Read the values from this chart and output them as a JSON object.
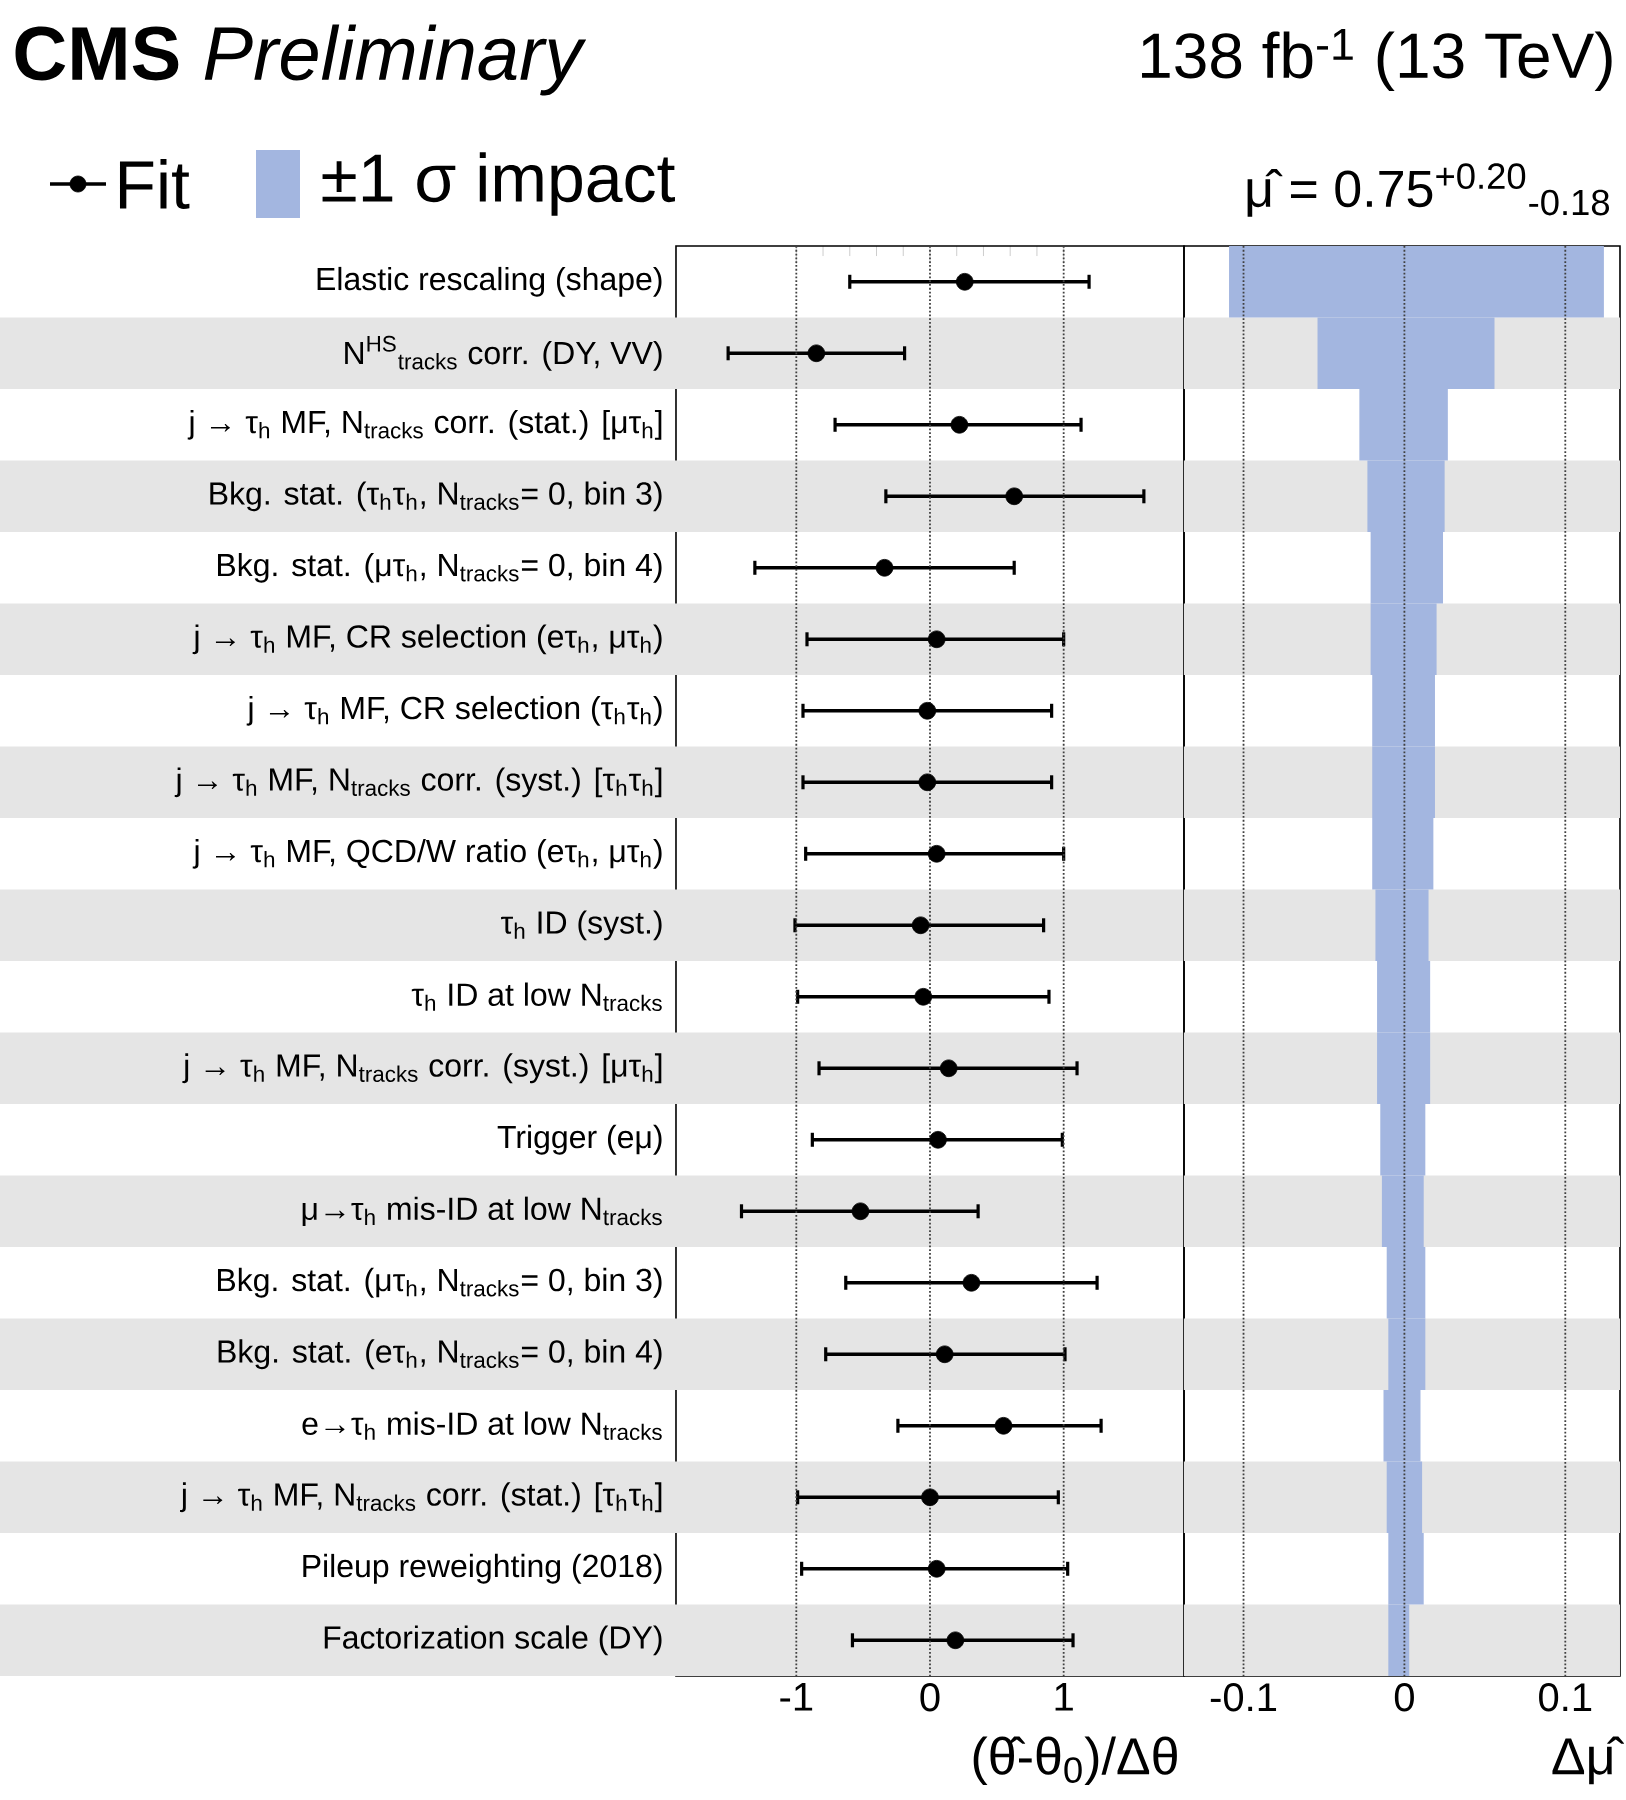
{
  "chart_data": [
    {
      "type": "scatter",
      "orientation": "horizontal",
      "title": "**CMS** *Preliminary*",
      "xlabel": "(θ̂-θ$_{0}$)/Δθ",
      "categories": [
        "Elastic rescaling (shape)",
        "N$^{HS}$$_{tracks}$ corr. (DY, VV)",
        "j → τ$_{h}$ MF, N$_{tracks}$ corr. (stat.) [μτ$_{h}$]",
        "Bkg. stat. (τ$_{h}$τ$_{h}$, N$_{tracks}$= 0, bin 3)",
        "Bkg. stat. (μτ$_{h}$, N$_{tracks}$= 0, bin 4)",
        "j → τ$_{h}$ MF, CR selection (eτ$_{h}$, μτ$_{h}$)",
        "j → τ$_{h}$ MF, CR selection (τ$_{h}$τ$_{h}$)",
        "j → τ$_{h}$ MF, N$_{tracks}$ corr. (syst.) [τ$_{h}$τ$_{h}$]",
        "j → τ$_{h}$ MF, QCD/W ratio (eτ$_{h}$, μτ$_{h}$)",
        "τ$_{h}$ ID (syst.)",
        "τ$_{h}$ ID at low N$_{tracks}$",
        "j → τ$_{h}$ MF, N$_{tracks}$ corr. (syst.) [μτ$_{h}$]",
        "Trigger (eμ)",
        "μ→τ$_{h}$ mis-ID at low N$_{tracks}$",
        "Bkg. stat. (μτ$_{h}$, N$_{tracks}$= 0, bin 3)",
        "Bkg. stat. (eτ$_{h}$, N$_{tracks}$= 0, bin 4)",
        "e→τ$_{h}$ mis-ID at low N$_{tracks}$",
        "j → τ$_{h}$ MF, N$_{tracks}$ corr. (stat.) [τ$_{h}$τ$_{h}$]",
        "Pileup reweighting (2018)",
        "Factorization scale (DY)"
      ],
      "series": [
        {
          "name": "Fit",
          "color": "#000000",
          "values": [
            0.26,
            -0.85,
            0.22,
            0.63,
            -0.34,
            0.05,
            -0.02,
            -0.02,
            0.05,
            -0.07,
            -0.05,
            0.14,
            0.06,
            -0.52,
            0.31,
            0.11,
            0.55,
            0.0,
            0.05,
            0.19
          ],
          "errors": [
            [
              -0.6,
              1.19
            ],
            [
              -1.51,
              -0.19
            ],
            [
              -0.71,
              1.13
            ],
            [
              -0.33,
              1.6
            ],
            [
              -1.31,
              0.63
            ],
            [
              -0.92,
              1.0
            ],
            [
              -0.95,
              0.91
            ],
            [
              -0.95,
              0.91
            ],
            [
              -0.93,
              1.0
            ],
            [
              -1.01,
              0.85
            ],
            [
              -0.99,
              0.89
            ],
            [
              -0.83,
              1.1
            ],
            [
              -0.88,
              0.99
            ],
            [
              -1.41,
              0.36
            ],
            [
              -0.63,
              1.25
            ],
            [
              -0.78,
              1.01
            ],
            [
              -0.24,
              1.28
            ],
            [
              -0.99,
              0.96
            ],
            [
              -0.96,
              1.03
            ],
            [
              -0.58,
              1.07
            ]
          ]
        }
      ],
      "xlim": [
        -1.9,
        1.9
      ],
      "xticks": [
        -1,
        0,
        1
      ],
      "grid": "x",
      "marker": "circle",
      "legend": "top",
      "bands": [
        {
          "axis": "y",
          "from": "N$^{HS}$$_{tracks}$ corr. (DY, VV)",
          "to": "N$^{HS}$$_{tracks}$ corr. (DY, VV)",
          "color": "#e5e5e5"
        },
        {
          "axis": "y",
          "from": "Bkg. stat. (τ$_{h}$τ$_{h}$, N$_{tracks}$= 0, bin 3)",
          "to": "Bkg. stat. (τ$_{h}$τ$_{h}$, N$_{tracks}$= 0, bin 3)",
          "color": "#e5e5e5"
        },
        {
          "axis": "y",
          "from": "j → τ$_{h}$ MF, CR selection (eτ$_{h}$, μτ$_{h}$)",
          "to": "j → τ$_{h}$ MF, CR selection (eτ$_{h}$, μτ$_{h}$)",
          "color": "#e5e5e5"
        },
        {
          "axis": "y",
          "from": "j → τ$_{h}$ MF, N$_{tracks}$ corr. (syst.) [τ$_{h}$τ$_{h}$]",
          "to": "j → τ$_{h}$ MF, N$_{tracks}$ corr. (syst.) [τ$_{h}$τ$_{h}$]",
          "color": "#e5e5e5"
        },
        {
          "axis": "y",
          "from": "τ$_{h}$ ID (syst.)",
          "to": "τ$_{h}$ ID (syst.)",
          "color": "#e5e5e5"
        },
        {
          "axis": "y",
          "from": "j → τ$_{h}$ MF, N$_{tracks}$ corr. (syst.) [μτ$_{h}$]",
          "to": "j → τ$_{h}$ MF, N$_{tracks}$ corr. (syst.) [μτ$_{h}$]",
          "color": "#e5e5e5"
        },
        {
          "axis": "y",
          "from": "μ→τ$_{h}$ mis-ID at low N$_{tracks}$",
          "to": "μ→τ$_{h}$ mis-ID at low N$_{tracks}$",
          "color": "#e5e5e5"
        },
        {
          "axis": "y",
          "from": "Bkg. stat. (eτ$_{h}$, N$_{tracks}$= 0, bin 4)",
          "to": "Bkg. stat. (eτ$_{h}$, N$_{tracks}$= 0, bin 4)",
          "color": "#e5e5e5"
        },
        {
          "axis": "y",
          "from": "j → τ$_{h}$ MF, N$_{tracks}$ corr. (stat.) [τ$_{h}$τ$_{h}$]",
          "to": "j → τ$_{h}$ MF, N$_{tracks}$ corr. (stat.) [τ$_{h}$τ$_{h}$]",
          "color": "#e5e5e5"
        },
        {
          "axis": "y",
          "from": "Factorization scale (DY)",
          "to": "Factorization scale (DY)",
          "color": "#e5e5e5"
        }
      ]
    },
    {
      "type": "bar",
      "orientation": "horizontal",
      "subtitle": "138 fb$^{-1}$ (13 TeV)",
      "xlabel": "Δμ̂",
      "annotations": [
        "μ̂ = 0.75$^{+0.20}$$_{-0.18}$"
      ],
      "categories": [
        "Elastic rescaling (shape)",
        "N$^{HS}$$_{tracks}$ corr. (DY, VV)",
        "j → τ$_{h}$ MF, N$_{tracks}$ corr. (stat.) [μτ$_{h}$]",
        "Bkg. stat. (τ$_{h}$τ$_{h}$, N$_{tracks}$= 0, bin 3)",
        "Bkg. stat. (μτ$_{h}$, N$_{tracks}$= 0, bin 4)",
        "j → τ$_{h}$ MF, CR selection (eτ$_{h}$, μτ$_{h}$)",
        "j → τ$_{h}$ MF, CR selection (τ$_{h}$τ$_{h}$)",
        "j → τ$_{h}$ MF, N$_{tracks}$ corr. (syst.) [τ$_{h}$τ$_{h}$]",
        "j → τ$_{h}$ MF, QCD/W ratio (eτ$_{h}$, μτ$_{h}$)",
        "τ$_{h}$ ID (syst.)",
        "τ$_{h}$ ID at low N$_{tracks}$",
        "j → τ$_{h}$ MF, N$_{tracks}$ corr. (syst.) [μτ$_{h}$]",
        "Trigger (eμ)",
        "μ→τ$_{h}$ mis-ID at low N$_{tracks}$",
        "Bkg. stat. (μτ$_{h}$, N$_{tracks}$= 0, bin 3)",
        "Bkg. stat. (eτ$_{h}$, N$_{tracks}$= 0, bin 4)",
        "e→τ$_{h}$ mis-ID at low N$_{tracks}$",
        "j → τ$_{h}$ MF, N$_{tracks}$ corr. (stat.) [τ$_{h}$τ$_{h}$]",
        "Pileup reweighting (2018)",
        "Factorization scale (DY)"
      ],
      "series": [
        {
          "name": "±1 σ impact",
          "color": "#a3b6e0",
          "base": [
            -0.109,
            -0.054,
            -0.028,
            -0.023,
            -0.021,
            -0.021,
            -0.02,
            -0.02,
            -0.02,
            -0.018,
            -0.017,
            -0.017,
            -0.015,
            -0.014,
            -0.011,
            -0.01,
            -0.013,
            -0.011,
            -0.01,
            -0.01
          ],
          "values": [
            0.233,
            0.11,
            0.055,
            0.048,
            0.045,
            0.041,
            0.039,
            0.039,
            0.038,
            0.033,
            0.033,
            0.033,
            0.028,
            0.026,
            0.024,
            0.023,
            0.023,
            0.022,
            0.022,
            0.013
          ]
        }
      ],
      "xlim": [
        -0.137,
        0.134
      ],
      "xticks": [
        -0.1,
        0,
        0.1
      ],
      "grid": "x",
      "legend": "top",
      "tick_labels": "x",
      "bands": [
        {
          "axis": "y",
          "from": "N$^{HS}$$_{tracks}$ corr. (DY, VV)",
          "to": "N$^{HS}$$_{tracks}$ corr. (DY, VV)",
          "color": "#e5e5e5"
        },
        {
          "axis": "y",
          "from": "Bkg. stat. (τ$_{h}$τ$_{h}$, N$_{tracks}$= 0, bin 3)",
          "to": "Bkg. stat. (τ$_{h}$τ$_{h}$, N$_{tracks}$= 0, bin 3)",
          "color": "#e5e5e5"
        },
        {
          "axis": "y",
          "from": "j → τ$_{h}$ MF, CR selection (eτ$_{h}$, μτ$_{h}$)",
          "to": "j → τ$_{h}$ MF, CR selection (eτ$_{h}$, μτ$_{h}$)",
          "color": "#e5e5e5"
        },
        {
          "axis": "y",
          "from": "j → τ$_{h}$ MF, N$_{tracks}$ corr. (syst.) [τ$_{h}$τ$_{h}$]",
          "to": "j → τ$_{h}$ MF, N$_{tracks}$ corr. (syst.) [τ$_{h}$τ$_{h}$]",
          "color": "#e5e5e5"
        },
        {
          "axis": "y",
          "from": "τ$_{h}$ ID (syst.)",
          "to": "τ$_{h}$ ID (syst.)",
          "color": "#e5e5e5"
        },
        {
          "axis": "y",
          "from": "j → τ$_{h}$ MF, N$_{tracks}$ corr. (syst.) [μτ$_{h}$]",
          "to": "j → τ$_{h}$ MF, N$_{tracks}$ corr. (syst.) [μτ$_{h}$]",
          "color": "#e5e5e5"
        },
        {
          "axis": "y",
          "from": "μ→τ$_{h}$ mis-ID at low N$_{tracks}$",
          "to": "μ→τ$_{h}$ mis-ID at low N$_{tracks}$",
          "color": "#e5e5e5"
        },
        {
          "axis": "y",
          "from": "Bkg. stat. (eτ$_{h}$, N$_{tracks}$= 0, bin 4)",
          "to": "Bkg. stat. (eτ$_{h}$, N$_{tracks}$= 0, bin 4)",
          "color": "#e5e5e5"
        },
        {
          "axis": "y",
          "from": "j → τ$_{h}$ MF, N$_{tracks}$ corr. (stat.) [τ$_{h}$τ$_{h}$]",
          "to": "j → τ$_{h}$ MF, N$_{tracks}$ corr. (stat.) [τ$_{h}$τ$_{h}$]",
          "color": "#e5e5e5"
        },
        {
          "axis": "y",
          "from": "Factorization scale (DY)",
          "to": "Factorization scale (DY)",
          "color": "#e5e5e5"
        }
      ]
    }
  ]
}
